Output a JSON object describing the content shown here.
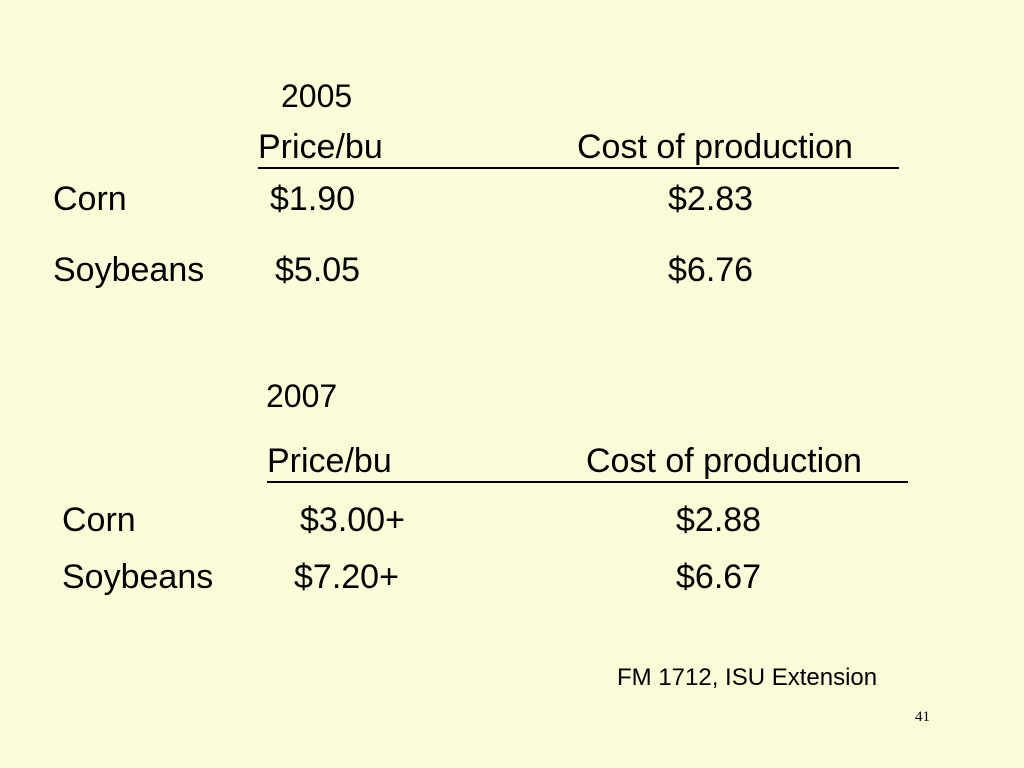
{
  "sections": [
    {
      "year": "2005",
      "headers": {
        "price": "Price/bu",
        "cost": "Cost of production"
      },
      "rows": [
        {
          "crop": "Corn",
          "price": "$1.90",
          "cost": "$2.83"
        },
        {
          "crop": "Soybeans",
          "price": "$5.05",
          "cost": "$6.76"
        }
      ]
    },
    {
      "year": "2007",
      "headers": {
        "price": "Price/bu",
        "cost": "Cost of production"
      },
      "rows": [
        {
          "crop": "Corn",
          "price": "$3.00+",
          "cost": "$2.88"
        },
        {
          "crop": "Soybeans",
          "price": "$7.20+",
          "cost": "$6.67"
        }
      ]
    }
  ],
  "source": "FM 1712, ISU Extension",
  "page_number": "41"
}
